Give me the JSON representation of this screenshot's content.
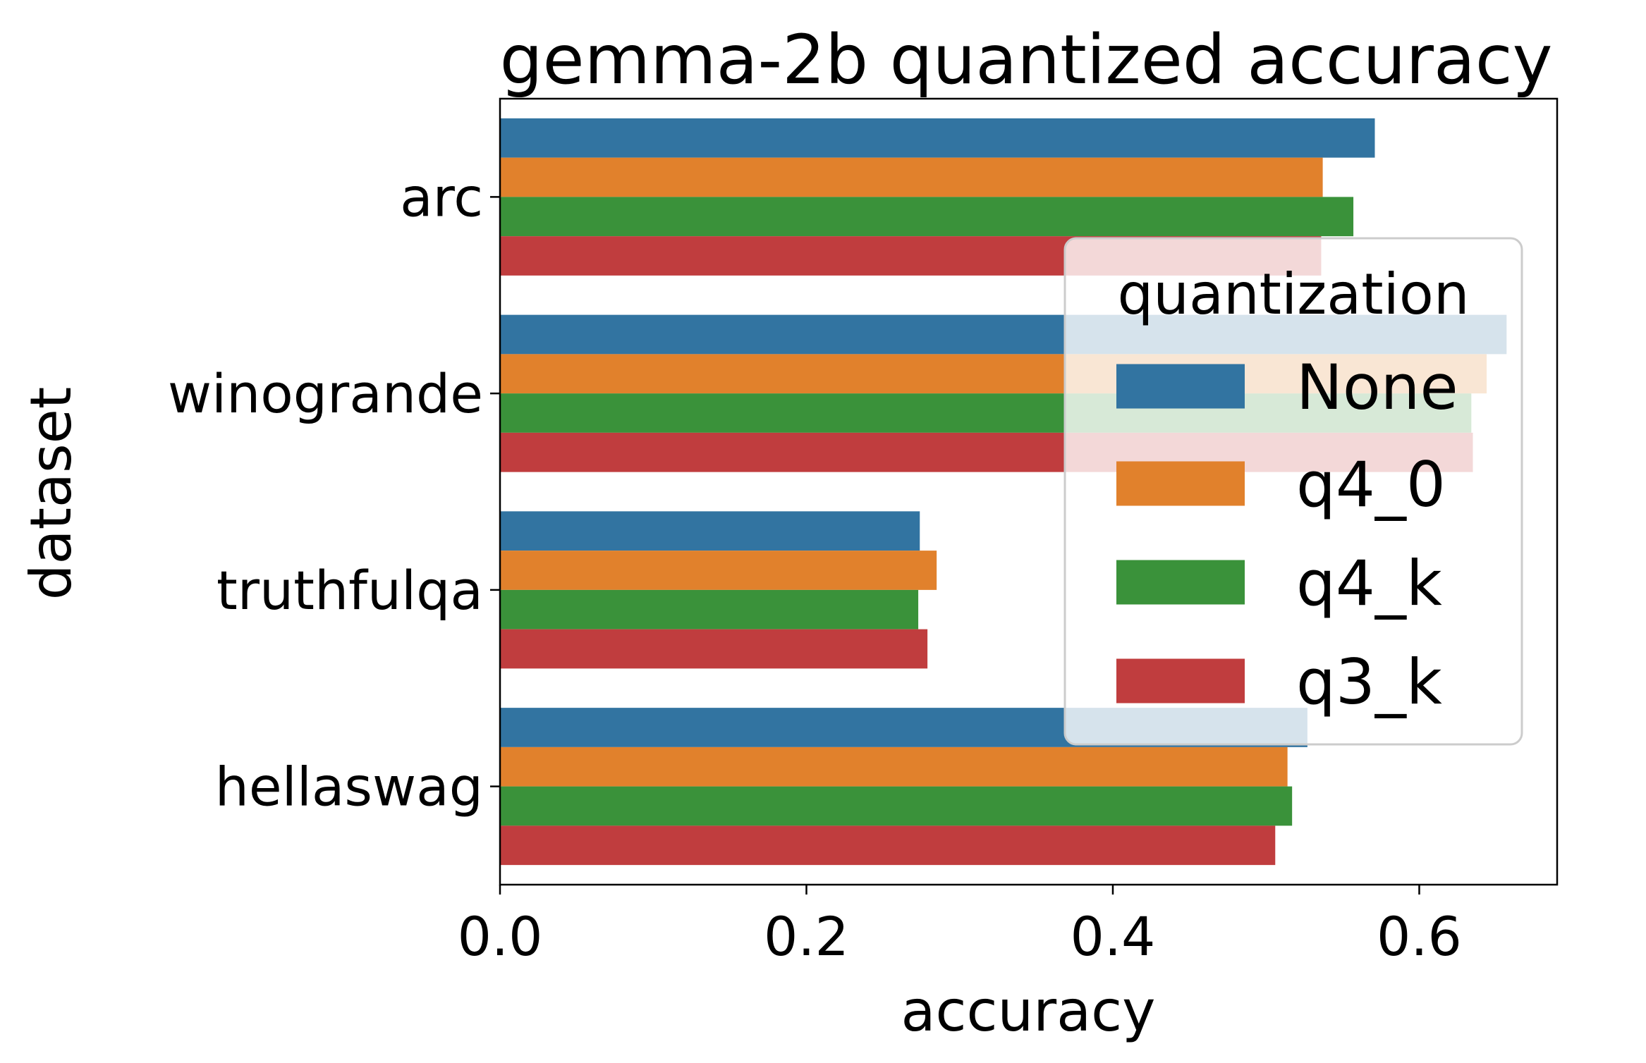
{
  "chart_data": {
    "type": "bar",
    "orientation": "horizontal",
    "title": "gemma-2b quantized accuracy",
    "xlabel": "accuracy",
    "ylabel": "dataset",
    "categories": [
      "arc",
      "winogrande",
      "truthfulqa",
      "hellaswag"
    ],
    "xlim": [
      0,
      0.69
    ],
    "xticks": [
      "0.0",
      "0.2",
      "0.4",
      "0.6"
    ],
    "xtick_values": [
      0,
      0.2,
      0.4,
      0.6
    ],
    "grid": false,
    "legend": {
      "title": "quantization",
      "placement": "center-right",
      "entries": [
        "None",
        "q4_0",
        "q4_k",
        "q3_k"
      ]
    },
    "series": [
      {
        "name": "None",
        "color": "#3274a1",
        "values": [
          0.571,
          0.657,
          0.274,
          0.527
        ]
      },
      {
        "name": "q4_0",
        "color": "#e1812c",
        "values": [
          0.537,
          0.644,
          0.285,
          0.514
        ]
      },
      {
        "name": "q4_k",
        "color": "#3a923a",
        "values": [
          0.557,
          0.634,
          0.273,
          0.517
        ]
      },
      {
        "name": "q3_k",
        "color": "#c03d3e",
        "values": [
          0.536,
          0.635,
          0.279,
          0.506
        ]
      }
    ]
  }
}
